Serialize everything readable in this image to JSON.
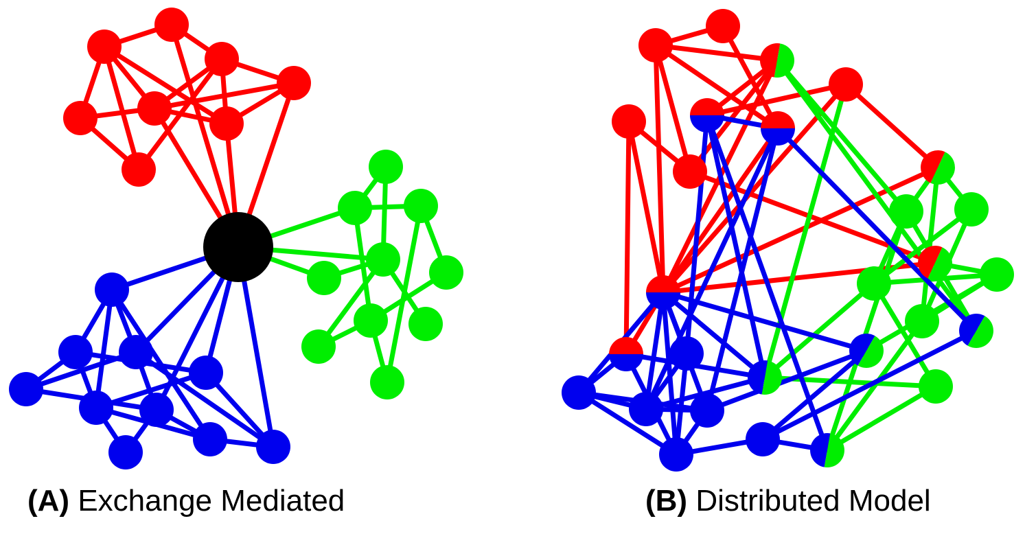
{
  "colors": {
    "red": "#ff0000",
    "green": "#00ee00",
    "blue": "#0000ee",
    "black": "#000000",
    "background": "#ffffff"
  },
  "panels": [
    {
      "id": "A",
      "label": "(A)",
      "title": "Exchange Mediated",
      "hub": "exchange"
    },
    {
      "id": "B",
      "label": "(B)",
      "title": "Distributed Model"
    }
  ]
}
